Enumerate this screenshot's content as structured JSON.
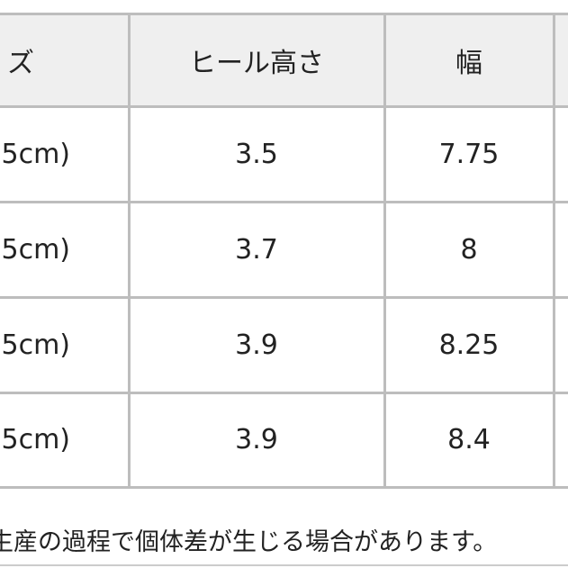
{
  "table": {
    "header": [
      "ズ",
      "ヒール高さ",
      "幅"
    ],
    "rows": [
      [
        "5cm)",
        "3.5",
        "7.75"
      ],
      [
        "5cm)",
        "3.7",
        "8"
      ],
      [
        "5cm)",
        "3.9",
        "8.25"
      ],
      [
        "5cm)",
        "3.9",
        "8.4"
      ]
    ]
  },
  "footer": "生産の過程で個体差が生じる場合があります。"
}
